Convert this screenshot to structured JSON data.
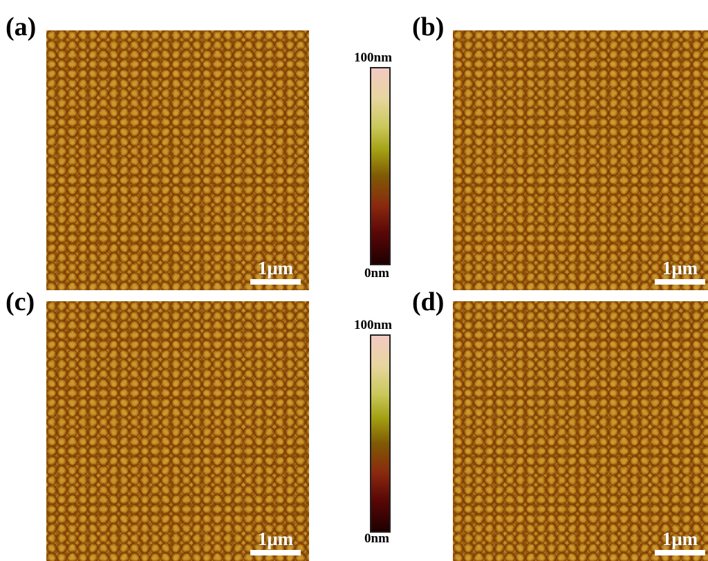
{
  "panels": [
    {
      "label": "(a)",
      "scale_bar": "1μm"
    },
    {
      "label": "(b)",
      "scale_bar": "1μm"
    },
    {
      "label": "(c)",
      "scale_bar": "1μm"
    },
    {
      "label": "(d)",
      "scale_bar": "1μm"
    }
  ],
  "colorbars": [
    {
      "max_label": "100nm",
      "min_label": "0nm"
    },
    {
      "max_label": "100nm",
      "min_label": "0nm"
    }
  ],
  "colors": {
    "afm_base": "#b37a14",
    "scale_bar": "#ffffff"
  }
}
